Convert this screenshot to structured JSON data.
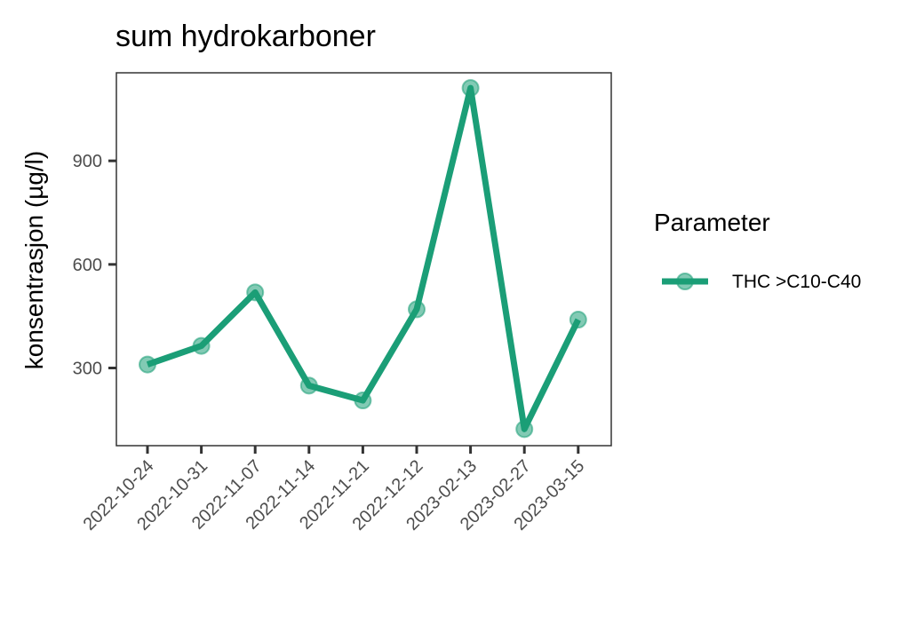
{
  "chart_data": {
    "type": "line",
    "title": "sum hydrokarboner",
    "xlabel": "",
    "ylabel": "konsentrasjon (µg/l)",
    "categories": [
      "2022-10-24",
      "2022-10-31",
      "2022-11-07",
      "2022-11-14",
      "2022-11-21",
      "2022-12-12",
      "2023-02-13",
      "2023-02-27",
      "2023-03-15"
    ],
    "series": [
      {
        "name": "THC >C10-C40",
        "color": "#1b9e77",
        "values": [
          310,
          364,
          519,
          249,
          206,
          470,
          1111,
          123,
          440
        ]
      }
    ],
    "ylim": [
      75,
      1155
    ],
    "yticks": [
      300,
      600,
      900
    ],
    "grid": false,
    "legend": {
      "title": "Parameter",
      "placement": "right"
    }
  }
}
